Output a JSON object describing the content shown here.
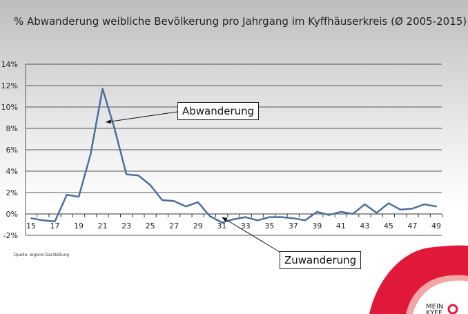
{
  "chart_data": {
    "type": "line",
    "title": "% Abwanderung weibliche Bevölkerung pro Jahrgang im Kyffhäuserkreis (Ø 2005-2015)",
    "x": [
      15,
      16,
      17,
      18,
      19,
      20,
      21,
      22,
      23,
      24,
      25,
      26,
      27,
      28,
      29,
      30,
      31,
      32,
      33,
      34,
      35,
      36,
      37,
      38,
      39,
      40,
      41,
      42,
      43,
      44,
      45,
      46,
      47,
      48,
      49
    ],
    "values": [
      -0.4,
      -0.6,
      -0.7,
      1.8,
      1.6,
      5.6,
      11.7,
      8.0,
      3.7,
      3.6,
      2.7,
      1.3,
      1.2,
      0.7,
      1.1,
      -0.2,
      -0.8,
      -0.5,
      -0.3,
      -0.6,
      -0.3,
      -0.3,
      -0.4,
      -0.6,
      0.2,
      -0.1,
      0.2,
      0.0,
      0.9,
      0.1,
      1.0,
      0.4,
      0.5,
      0.9,
      0.7
    ],
    "x_tick_labels": [
      "15",
      "17",
      "19",
      "21",
      "23",
      "25",
      "27",
      "29",
      "31",
      "33",
      "35",
      "37",
      "39",
      "41",
      "43",
      "45",
      "47",
      "49"
    ],
    "y_tick_labels": [
      "-2%",
      "0%",
      "2%",
      "4%",
      "6%",
      "8%",
      "10%",
      "12%",
      "14%"
    ],
    "ylim": [
      -2,
      14
    ],
    "grid": true,
    "line_color": "#4a6fa0",
    "annotations": [
      "Abwanderung",
      "Zuwanderung"
    ]
  },
  "source": "Quelle: eigene Darstellung",
  "logo": {
    "text": "MEIN KYFF",
    "color": "#e0193a"
  }
}
